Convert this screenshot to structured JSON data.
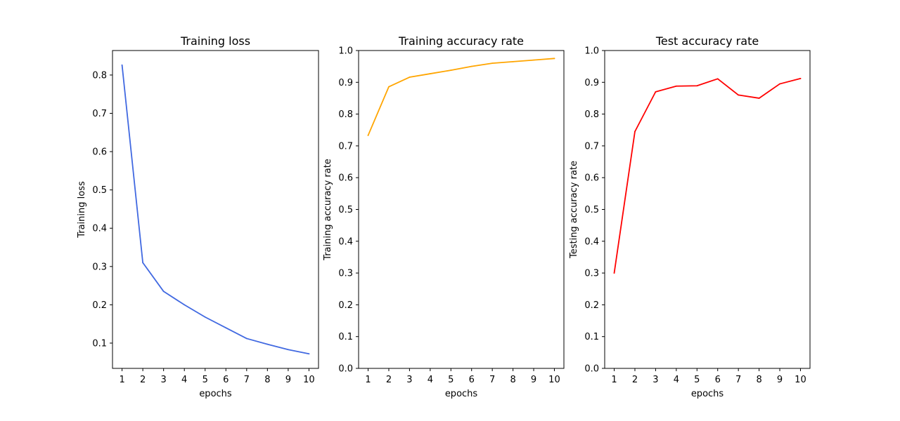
{
  "chart_data": [
    {
      "type": "line",
      "title": "Training loss",
      "xlabel": "epochs",
      "ylabel": "Training loss",
      "x": [
        1,
        2,
        3,
        4,
        5,
        6,
        7,
        8,
        9,
        10
      ],
      "series": [
        {
          "color": "#4169e1",
          "values": [
            0.826,
            0.31,
            0.235,
            0.2,
            0.168,
            0.14,
            0.112,
            0.097,
            0.083,
            0.072
          ]
        }
      ],
      "xticks": [
        1,
        2,
        3,
        4,
        5,
        6,
        7,
        8,
        9,
        10
      ],
      "yticks": [
        "0.1",
        "0.2",
        "0.3",
        "0.4",
        "0.5",
        "0.6",
        "0.7",
        "0.8"
      ],
      "xlim": [
        0.54,
        10.46
      ],
      "ylim": [
        0.034,
        0.864
      ],
      "grid": false
    },
    {
      "type": "line",
      "title": "Training accuracy rate",
      "xlabel": "epochs",
      "ylabel": "Training accuracy rate",
      "x": [
        1,
        2,
        3,
        4,
        5,
        6,
        7,
        8,
        9,
        10
      ],
      "series": [
        {
          "color": "#ffa500",
          "values": [
            0.733,
            0.886,
            0.916,
            0.927,
            0.938,
            0.95,
            0.96,
            0.965,
            0.97,
            0.975
          ]
        }
      ],
      "xticks": [
        1,
        2,
        3,
        4,
        5,
        6,
        7,
        8,
        9,
        10
      ],
      "yticks": [
        "0.0",
        "0.1",
        "0.2",
        "0.3",
        "0.4",
        "0.5",
        "0.6",
        "0.7",
        "0.8",
        "0.9",
        "1.0"
      ],
      "xlim": [
        0.54,
        10.46
      ],
      "ylim": [
        0,
        1
      ],
      "grid": false
    },
    {
      "type": "line",
      "title": "Test accuracy rate",
      "xlabel": "epochs",
      "ylabel": "Testing accuracy rate",
      "x": [
        1,
        2,
        3,
        4,
        5,
        6,
        7,
        8,
        9,
        10
      ],
      "series": [
        {
          "color": "#ff0000",
          "values": [
            0.3,
            0.745,
            0.87,
            0.888,
            0.889,
            0.911,
            0.86,
            0.85,
            0.895,
            0.912
          ]
        }
      ],
      "xticks": [
        1,
        2,
        3,
        4,
        5,
        6,
        7,
        8,
        9,
        10
      ],
      "yticks": [
        "0.0",
        "0.1",
        "0.2",
        "0.3",
        "0.4",
        "0.5",
        "0.6",
        "0.7",
        "0.8",
        "0.9",
        "1.0"
      ],
      "xlim": [
        0.54,
        10.46
      ],
      "ylim": [
        0,
        1
      ],
      "grid": false
    }
  ]
}
